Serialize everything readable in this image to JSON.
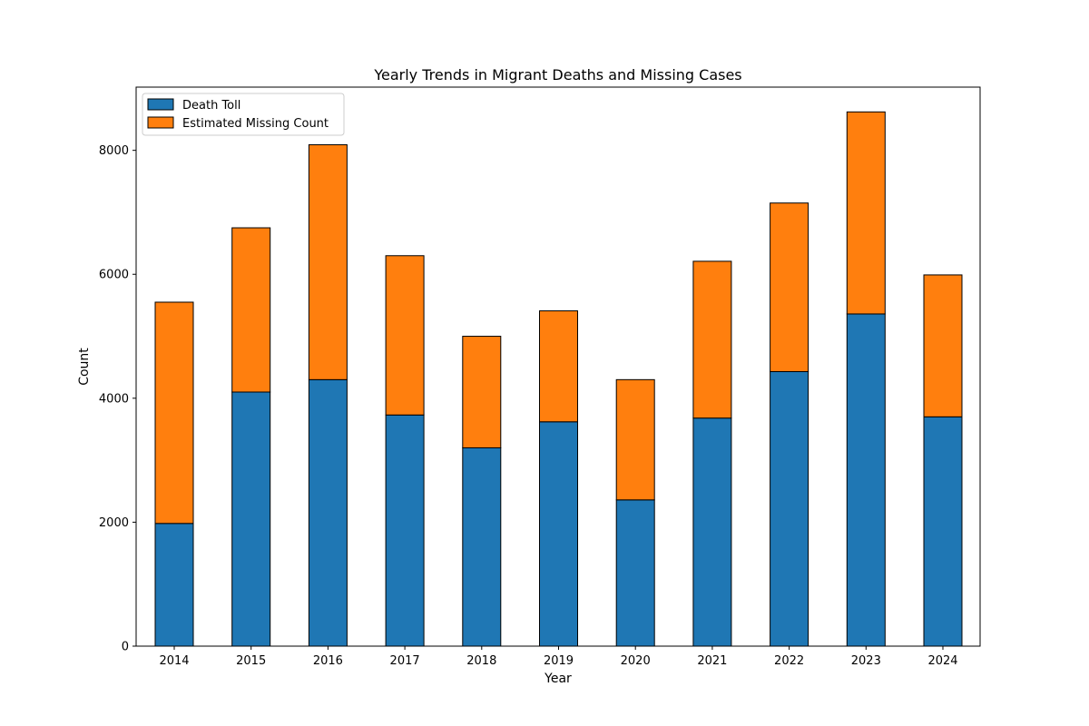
{
  "chart_data": {
    "type": "bar",
    "stacked": true,
    "title": "Yearly Trends in Migrant Deaths and Missing Cases",
    "xlabel": "Year",
    "ylabel": "Count",
    "categories": [
      "2014",
      "2015",
      "2016",
      "2017",
      "2018",
      "2019",
      "2020",
      "2021",
      "2022",
      "2023",
      "2024"
    ],
    "series": [
      {
        "name": "Death Toll",
        "color": "#1f77b4",
        "values": [
          1980,
          4100,
          4300,
          3730,
          3200,
          3620,
          2360,
          3680,
          4430,
          5360,
          3700
        ]
      },
      {
        "name": "Estimated Missing Count",
        "color": "#ff7f0e",
        "values": [
          3570,
          2650,
          3790,
          2570,
          1800,
          1790,
          1940,
          2530,
          2720,
          3260,
          2290
        ]
      }
    ],
    "ylim": [
      0,
      9020
    ],
    "yticks": [
      0,
      2000,
      4000,
      6000,
      8000
    ],
    "grid": false,
    "legend_position": "upper-left"
  }
}
